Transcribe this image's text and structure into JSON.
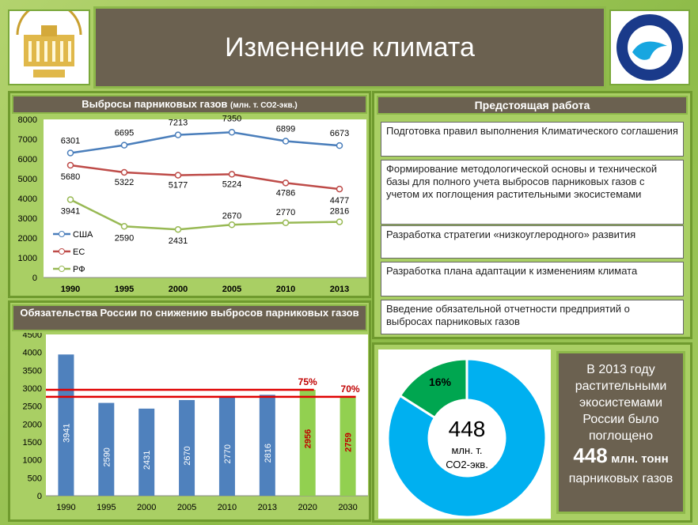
{
  "header": {
    "title": "Изменение климата"
  },
  "logos": {
    "left": "ГОСУДАРСТВЕННАЯ ДУМА",
    "right": "РОСГИДРОМЕТ ROSHYDROMET"
  },
  "colors": {
    "usa": "#4a7ebb",
    "eu": "#be4b48",
    "rf": "#98b954",
    "bar": "#4f81bd",
    "bar_target": "#92d050",
    "limit": "#e00000",
    "donut_main": "#00b0f0",
    "donut_part": "#00a650"
  },
  "chart_data": [
    {
      "type": "line",
      "title": "Выбросы парниковых газов",
      "title_units": "(млн. т. СО2-экв.)",
      "categories": [
        "1990",
        "1995",
        "2000",
        "2005",
        "2010",
        "2013"
      ],
      "ylim": [
        0,
        8000
      ],
      "yticks": [
        "0",
        "1000",
        "2000",
        "3000",
        "4000",
        "5000",
        "6000",
        "7000",
        "8000"
      ],
      "legend_position": "left",
      "series": [
        {
          "name": "США",
          "values": [
            6301,
            6695,
            7213,
            7350,
            6899,
            6673
          ]
        },
        {
          "name": "ЕС",
          "values": [
            5680,
            5322,
            5177,
            5224,
            4786,
            4477
          ]
        },
        {
          "name": "РФ",
          "values": [
            3941,
            2590,
            2431,
            2670,
            2770,
            2816
          ]
        }
      ]
    },
    {
      "type": "bar",
      "title": "Обязательства России по снижению выбросов парниковых газов",
      "categories": [
        "1990",
        "1995",
        "2000",
        "2005",
        "2010",
        "2013",
        "2020",
        "2030"
      ],
      "values": [
        3941,
        2590,
        2431,
        2670,
        2770,
        2816,
        2956,
        2759
      ],
      "ylim": [
        0,
        4500
      ],
      "yticks": [
        "0",
        "500",
        "1000",
        "1500",
        "2000",
        "2500",
        "3000",
        "3500",
        "4000",
        "4500"
      ],
      "reference_lines": [
        {
          "label": "75%",
          "value": 2956
        },
        {
          "label": "70%",
          "value": 2759
        }
      ]
    },
    {
      "type": "pie",
      "values": [
        16,
        84
      ],
      "labels": [
        "16%",
        ""
      ],
      "center_value": "448",
      "center_units": [
        "млн. т.",
        "СО2-экв."
      ]
    }
  ],
  "work": {
    "title": "Предстоящая работа",
    "items": [
      "Подготовка правил выполнения Климатического соглашения",
      "Формирование методологической основы и технической базы для полного учета выбросов парниковых газов с учетом их поглощения растительными экосистемами",
      "Разработка стратегии «низкоуглеродного» развития",
      "Разработка плана адаптации к изменениям климата",
      "Введение обязательной отчетности предприятий о выбросах парниковых газов"
    ]
  },
  "info": {
    "line1": "В 2013 году растительными экосистемами России было поглощено",
    "big": "448",
    "big_units": "млн. тонн",
    "line2": "парниковых газов"
  }
}
